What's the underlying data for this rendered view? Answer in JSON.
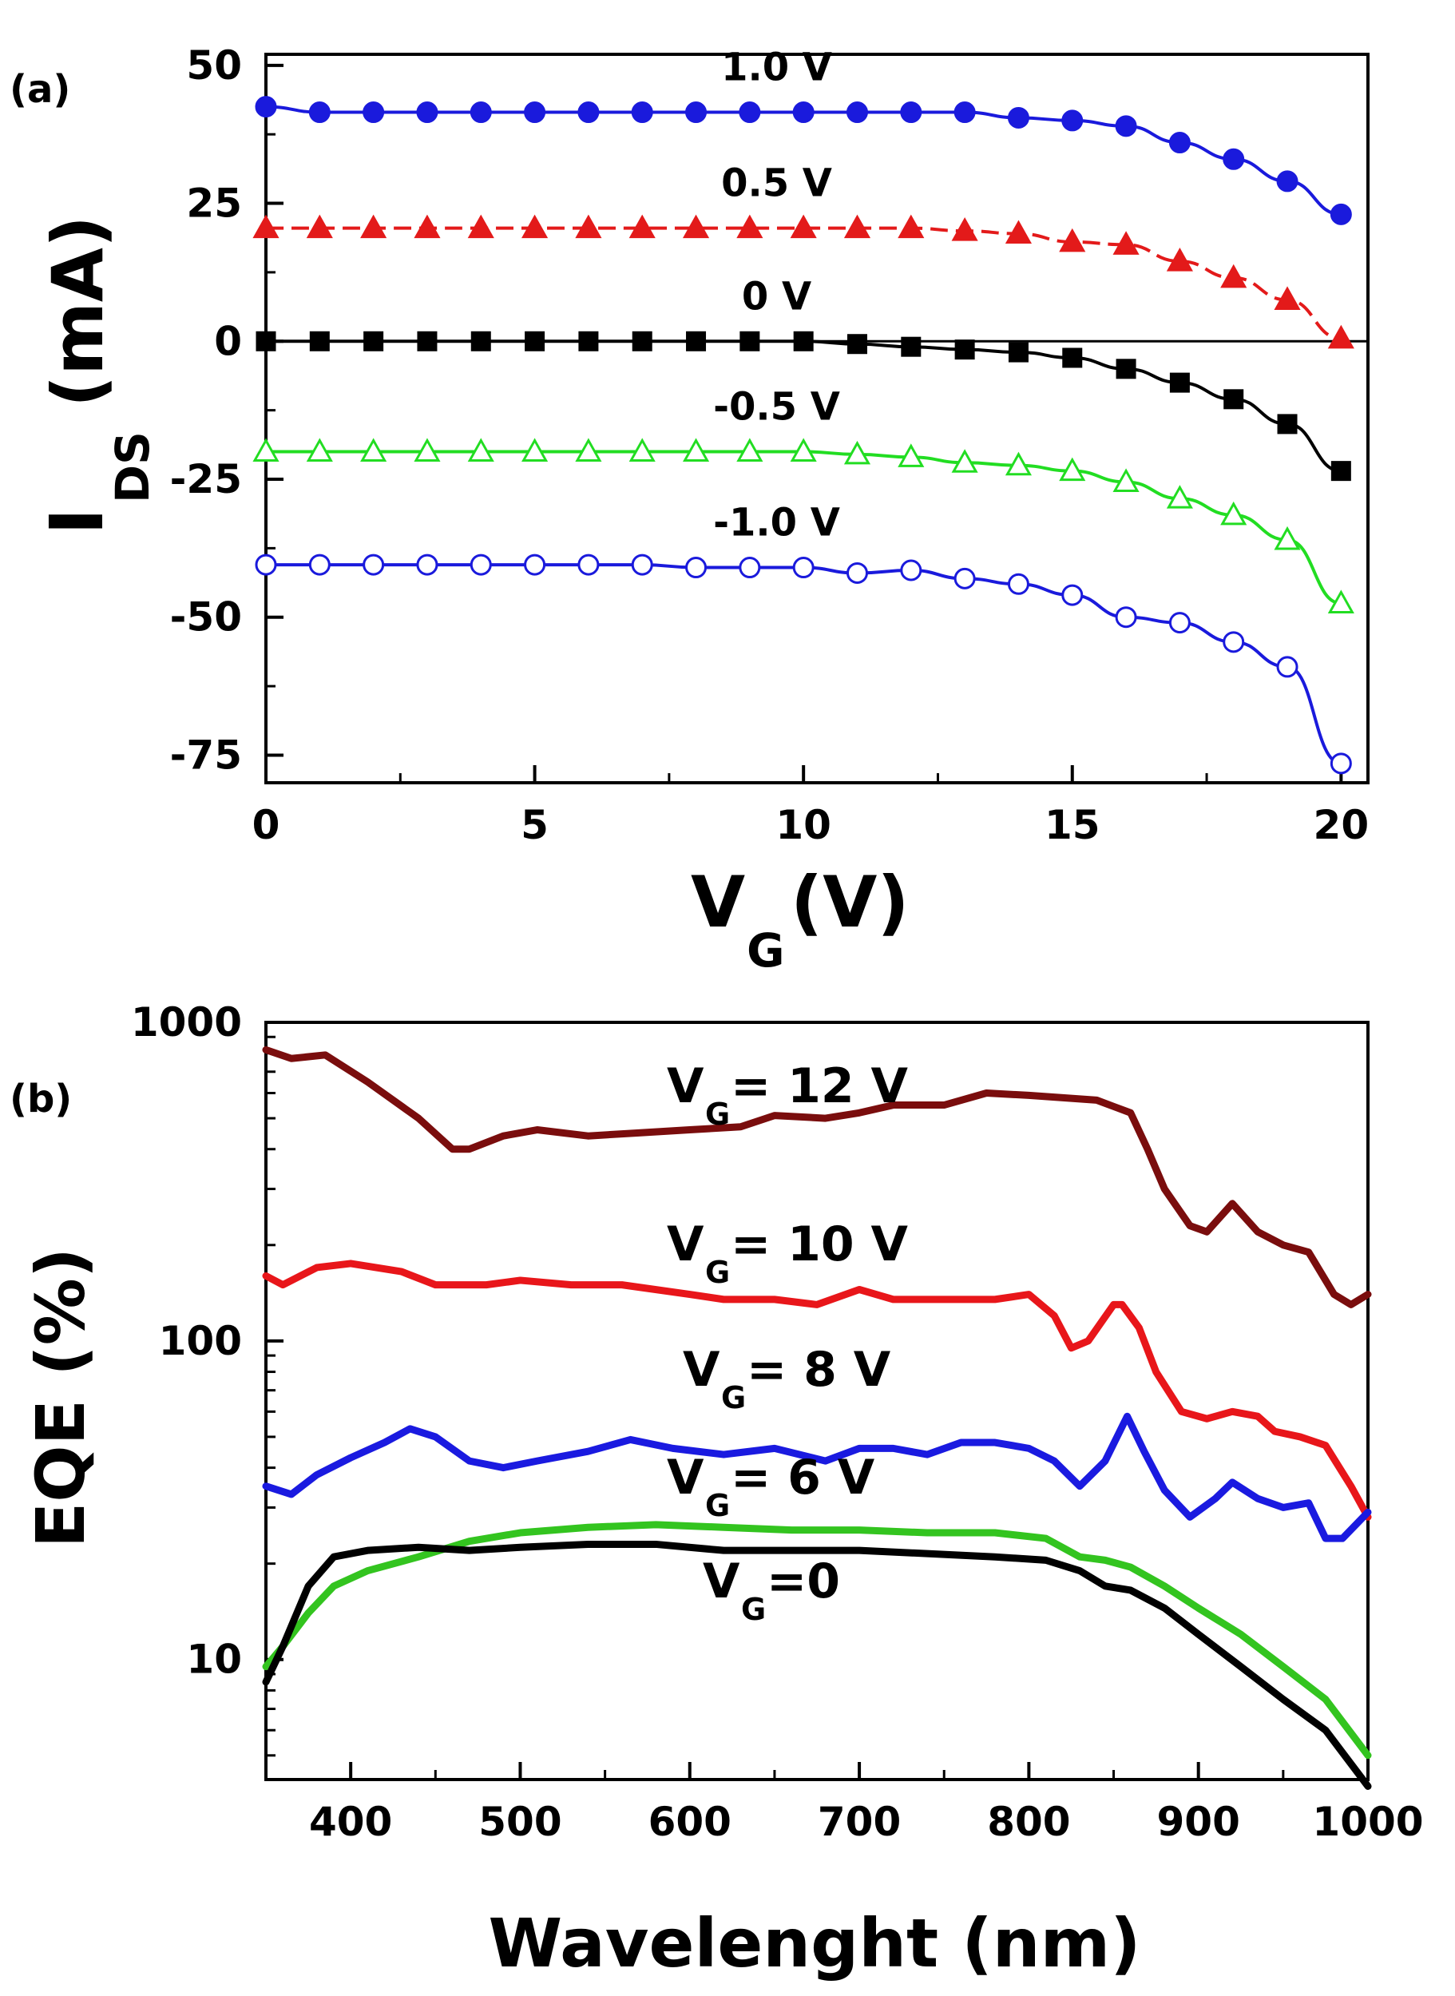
{
  "chart_data": [
    {
      "panel_label": "(a)",
      "type": "line",
      "xlabel_main": "V",
      "xlabel_sub": "G",
      "xlabel_unit": "(V)",
      "ylabel_main": "I",
      "ylabel_sub": "DS",
      "ylabel_unit": "(mA)",
      "xlim": [
        0,
        20.5
      ],
      "ylim": [
        -80,
        52
      ],
      "xticks": [
        0,
        5,
        10,
        15,
        20
      ],
      "yticks": [
        50,
        25,
        0,
        -25,
        -50,
        -75
      ],
      "reference_line": 0,
      "x": [
        0,
        1,
        2,
        3,
        4,
        5,
        6,
        7,
        8,
        9,
        10,
        11,
        12,
        13,
        14,
        15,
        16,
        17,
        18,
        19,
        20
      ],
      "series": [
        {
          "name": "1.0 V",
          "color": "#1a1adc",
          "marker": "circle",
          "filled": true,
          "dashed": false,
          "values": [
            42.5,
            41.5,
            41.5,
            41.5,
            41.5,
            41.5,
            41.5,
            41.5,
            41.5,
            41.5,
            41.5,
            41.5,
            41.5,
            41.5,
            40.5,
            40,
            39,
            36,
            33,
            29,
            23
          ]
        },
        {
          "name": "0.5 V",
          "color": "#e31a1a",
          "marker": "triangle",
          "filled": true,
          "dashed": true,
          "values": [
            20.5,
            20.5,
            20.5,
            20.5,
            20.5,
            20.5,
            20.5,
            20.5,
            20.5,
            20.5,
            20.5,
            20.5,
            20.5,
            20,
            19.5,
            18,
            17.5,
            14.5,
            11.5,
            7.5,
            0.5
          ]
        },
        {
          "name": "0 V",
          "color": "#000000",
          "marker": "square",
          "filled": true,
          "dashed": false,
          "values": [
            0,
            0,
            0,
            0,
            0,
            0,
            0,
            0,
            0,
            0,
            0,
            -0.5,
            -1,
            -1.5,
            -2,
            -3,
            -5,
            -7.5,
            -10.5,
            -15,
            -23.5
          ]
        },
        {
          "name": "-0.5 V",
          "color": "#22dd22",
          "marker": "triangle",
          "filled": false,
          "dashed": false,
          "values": [
            -20,
            -20,
            -20,
            -20,
            -20,
            -20,
            -20,
            -20,
            -20,
            -20,
            -20,
            -20.5,
            -21,
            -22,
            -22.5,
            -23.5,
            -25.5,
            -28.5,
            -31.5,
            -36,
            -47.5
          ]
        },
        {
          "name": "-1.0 V",
          "color": "#1a1adc",
          "marker": "circle",
          "filled": false,
          "dashed": false,
          "values": [
            -40.5,
            -40.5,
            -40.5,
            -40.5,
            -40.5,
            -40.5,
            -40.5,
            -40.5,
            -41,
            -41,
            -41,
            -42,
            -41.5,
            -43,
            -44,
            -46,
            -50,
            -51,
            -54.5,
            -59,
            -76.5
          ]
        }
      ]
    },
    {
      "panel_label": "(b)",
      "type": "line",
      "y_scale": "log",
      "xlabel": "Wavelenght (nm)",
      "ylabel": "EQE (%)",
      "xlim": [
        350,
        1000
      ],
      "ylim": [
        4.2,
        1000
      ],
      "xticks": [
        400,
        500,
        600,
        700,
        800,
        900,
        1000
      ],
      "yticks": [
        1000,
        100,
        10
      ],
      "series": [
        {
          "name_main": "V",
          "name_sub": "G",
          "name_rest": "= 12 V",
          "color": "#7a0d0d",
          "x": [
            350,
            365,
            385,
            410,
            440,
            460,
            470,
            490,
            510,
            540,
            570,
            600,
            630,
            650,
            680,
            700,
            720,
            750,
            775,
            800,
            820,
            840,
            860,
            870,
            880,
            895,
            905,
            920,
            935,
            950,
            965,
            980,
            990,
            1000
          ],
          "values": [
            820,
            770,
            790,
            650,
            500,
            400,
            400,
            440,
            460,
            440,
            450,
            460,
            470,
            510,
            500,
            520,
            550,
            550,
            600,
            590,
            580,
            570,
            520,
            400,
            300,
            230,
            220,
            270,
            220,
            200,
            190,
            140,
            130,
            140
          ]
        },
        {
          "name_main": "V",
          "name_sub": "G",
          "name_rest": "= 10 V",
          "color": "#e8161a",
          "x": [
            350,
            360,
            380,
            400,
            430,
            450,
            480,
            500,
            530,
            560,
            600,
            620,
            650,
            675,
            700,
            720,
            750,
            780,
            800,
            815,
            825,
            835,
            850,
            855,
            865,
            875,
            890,
            905,
            920,
            935,
            945,
            960,
            975,
            990,
            1000
          ],
          "values": [
            160,
            150,
            170,
            175,
            165,
            150,
            150,
            155,
            150,
            150,
            140,
            135,
            135,
            130,
            145,
            135,
            135,
            135,
            140,
            120,
            95,
            100,
            130,
            130,
            110,
            80,
            60,
            57,
            60,
            58,
            52,
            50,
            47,
            35,
            28
          ]
        },
        {
          "name_main": "V",
          "name_sub": "G",
          "name_rest": "= 8 V",
          "color": "#1a1ae0",
          "x": [
            350,
            365,
            380,
            400,
            420,
            435,
            450,
            470,
            490,
            510,
            540,
            565,
            590,
            620,
            650,
            680,
            700,
            720,
            740,
            760,
            780,
            800,
            815,
            830,
            845,
            858,
            868,
            880,
            895,
            910,
            920,
            935,
            950,
            965,
            975,
            985,
            1000
          ],
          "values": [
            35,
            33,
            38,
            43,
            48,
            53,
            50,
            42,
            40,
            42,
            45,
            49,
            46,
            44,
            46,
            42,
            46,
            46,
            44,
            48,
            48,
            46,
            42,
            35,
            42,
            58,
            45,
            34,
            28,
            32,
            36,
            32,
            30,
            31,
            24,
            24,
            29
          ]
        },
        {
          "name_main": "V",
          "name_sub": "G",
          "name_rest": "= 6 V",
          "color": "#33c41f",
          "x": [
            350,
            360,
            375,
            390,
            410,
            440,
            470,
            500,
            540,
            580,
            620,
            660,
            700,
            740,
            780,
            810,
            830,
            845,
            860,
            880,
            900,
            925,
            950,
            975,
            1000
          ],
          "values": [
            9.5,
            11,
            14,
            17,
            19,
            21,
            23.5,
            25,
            26,
            26.5,
            26,
            25.5,
            25.5,
            25,
            25,
            24,
            21,
            20.5,
            19.5,
            17,
            14.5,
            12,
            9.5,
            7.5,
            5
          ]
        },
        {
          "name_main": "V",
          "name_sub": "G",
          "name_rest": "=0",
          "color": "#000000",
          "x": [
            350,
            360,
            375,
            390,
            410,
            440,
            470,
            500,
            540,
            580,
            620,
            660,
            700,
            740,
            780,
            810,
            830,
            845,
            860,
            880,
            900,
            925,
            950,
            975,
            1000
          ],
          "values": [
            8.5,
            11,
            17,
            21,
            22,
            22.5,
            22,
            22.5,
            23,
            23,
            22,
            22,
            22,
            21.5,
            21,
            20.5,
            19,
            17,
            16.5,
            14.5,
            12,
            9.5,
            7.5,
            6,
            4
          ]
        }
      ]
    }
  ]
}
